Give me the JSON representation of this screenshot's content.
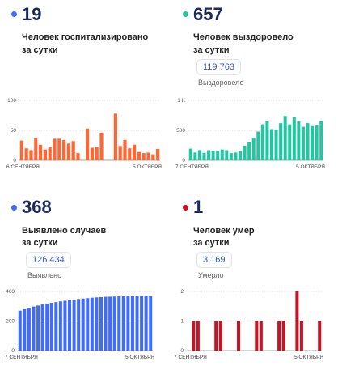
{
  "panels": [
    {
      "id": "hospitalized",
      "number": "19",
      "desc1": "Человек госпитализировано",
      "desc2": "за сутки",
      "total": "",
      "total_label": "",
      "dot_color": "#3f6bff",
      "bar_color": "#ff6633"
    },
    {
      "id": "recovered",
      "number": "657",
      "desc1": "Человек выздоровело",
      "desc2": "за сутки",
      "total": "119 763",
      "total_label": "Выздоровело",
      "dot_color": "#20c7a0",
      "bar_color": "#20c7a0"
    },
    {
      "id": "cases",
      "number": "368",
      "desc1": "Выявлено случаев",
      "desc2": "за сутки",
      "total": "126 434",
      "total_label": "Выявлено",
      "dot_color": "#3f6bff",
      "bar_color": "#3f6bff"
    },
    {
      "id": "deaths",
      "number": "1",
      "desc1": "Человек умер",
      "desc2": "за сутки",
      "total": "3 169",
      "total_label": "Умерло",
      "dot_color": "#cc1122",
      "bar_color": "#cc1122"
    }
  ],
  "chart_data": [
    {
      "type": "bar",
      "title": "",
      "ylim": [
        0,
        100
      ],
      "yticks": [
        "0",
        "50",
        "100"
      ],
      "x_start": "6 СЕНТЯБРЯ",
      "x_end": "5 ОКТЯБРЯ",
      "values": [
        33,
        20,
        17,
        37,
        26,
        18,
        22,
        36,
        36,
        34,
        28,
        32,
        12,
        0,
        53,
        21,
        22,
        46,
        0,
        0,
        78,
        24,
        34,
        20,
        26,
        14,
        12,
        13,
        10,
        19
      ],
      "grid": true
    },
    {
      "type": "bar",
      "title": "",
      "ylim": [
        0,
        1000
      ],
      "yticks": [
        "0",
        "500",
        "1 K"
      ],
      "x_start": "7 СЕНТЯБРЯ",
      "x_end": "5 ОКТЯБРЯ",
      "values": [
        195,
        130,
        170,
        125,
        170,
        160,
        155,
        180,
        170,
        120,
        130,
        155,
        245,
        300,
        380,
        480,
        600,
        650,
        520,
        510,
        620,
        740,
        600,
        720,
        650,
        560,
        620,
        570,
        580,
        657
      ],
      "grid": true
    },
    {
      "type": "bar",
      "title": "",
      "ylim": [
        0,
        400
      ],
      "yticks": [
        "0",
        "200",
        "400"
      ],
      "x_start": "7 СЕНТЯБРЯ",
      "x_end": "5 ОКТЯБРЯ",
      "values": [
        270,
        280,
        290,
        298,
        305,
        312,
        318,
        323,
        328,
        333,
        337,
        341,
        345,
        349,
        352,
        355,
        358,
        360,
        362,
        364,
        365,
        366,
        367,
        368,
        368,
        368,
        368,
        369,
        369,
        368
      ],
      "grid": true
    },
    {
      "type": "bar",
      "title": "",
      "ylim": [
        0,
        2
      ],
      "yticks": [
        "0",
        "1",
        "2"
      ],
      "x_start": "7 СЕНТЯБРЯ",
      "x_end": "5 ОКТЯБРЯ",
      "values": [
        0,
        1,
        1,
        0,
        0,
        0,
        1,
        1,
        0,
        0,
        0,
        1,
        0,
        0,
        0,
        1,
        1,
        0,
        0,
        0,
        1,
        1,
        0,
        0,
        2,
        1,
        0,
        0,
        0,
        1
      ],
      "grid": true
    }
  ]
}
